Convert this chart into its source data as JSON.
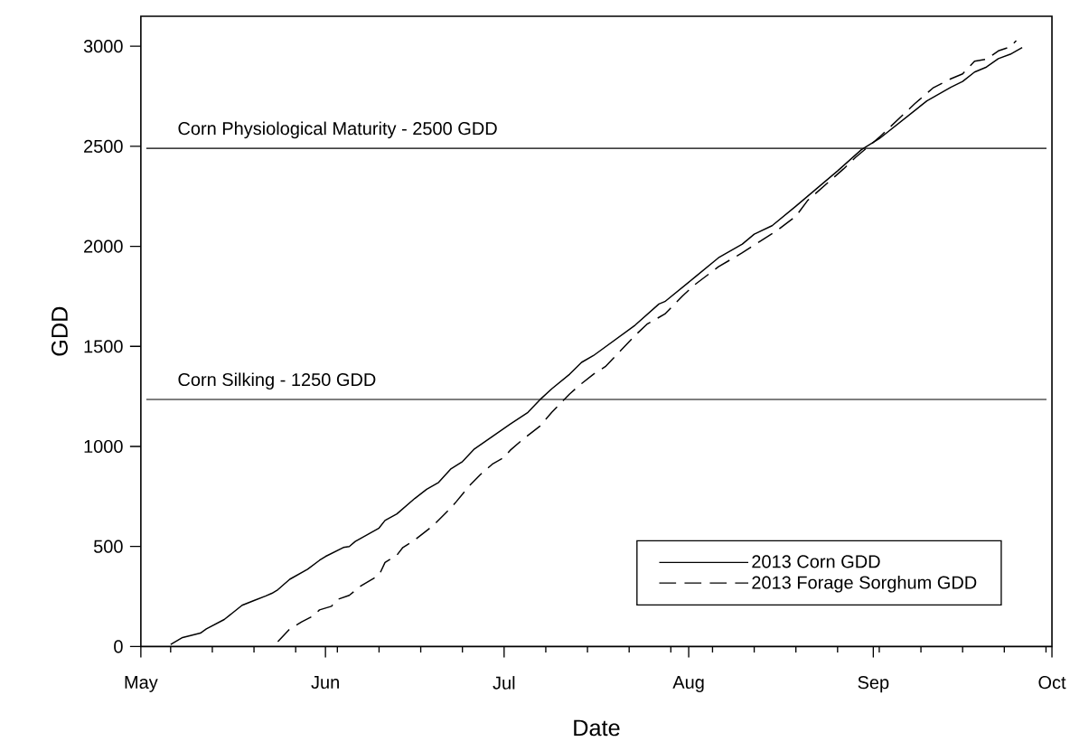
{
  "chart_data": {
    "type": "line",
    "xlabel": "Date",
    "ylabel": "GDD",
    "xlim": [
      "2013-05-01",
      "2013-10-01"
    ],
    "ylim": [
      0,
      3150
    ],
    "xticks": [
      {
        "value": "2013-05-01",
        "label": "May"
      },
      {
        "value": "2013-06-01",
        "label": "Jun"
      },
      {
        "value": "2013-07-01",
        "label": "Jul"
      },
      {
        "value": "2013-08-01",
        "label": "Aug"
      },
      {
        "value": "2013-09-01",
        "label": "Sep"
      },
      {
        "value": "2013-10-01",
        "label": "Oct"
      },
      {
        "value": "2013-05-06",
        "label": null
      },
      {
        "value": "2013-05-13",
        "label": null
      },
      {
        "value": "2013-05-20",
        "label": null
      },
      {
        "value": "2013-05-27",
        "label": null
      },
      {
        "value": "2013-06-03",
        "label": null
      },
      {
        "value": "2013-06-10",
        "label": null
      },
      {
        "value": "2013-06-17",
        "label": null
      },
      {
        "value": "2013-06-24",
        "label": null
      },
      {
        "value": "2013-07-08",
        "label": null
      },
      {
        "value": "2013-07-15",
        "label": null
      },
      {
        "value": "2013-07-22",
        "label": null
      },
      {
        "value": "2013-07-29",
        "label": null
      },
      {
        "value": "2013-08-05",
        "label": null
      },
      {
        "value": "2013-08-12",
        "label": null
      },
      {
        "value": "2013-08-19",
        "label": null
      },
      {
        "value": "2013-08-26",
        "label": null
      },
      {
        "value": "2013-09-02",
        "label": null
      },
      {
        "value": "2013-09-09",
        "label": null
      },
      {
        "value": "2013-09-16",
        "label": null
      },
      {
        "value": "2013-09-23",
        "label": null
      },
      {
        "value": "2013-09-30",
        "label": null
      }
    ],
    "yticks": [
      0,
      500,
      1000,
      1500,
      2000,
      2500,
      3000
    ],
    "grid": false,
    "legend": "bottom right",
    "marker": "none",
    "ref_lines": [
      {
        "axis": "y",
        "value": 2490,
        "label": "Corn Physiological Maturity - 2500 GDD",
        "color": "#000000"
      },
      {
        "axis": "y",
        "value": 1235,
        "label": "Corn Silking - 1250 GDD",
        "color": "#000000"
      }
    ],
    "series": [
      {
        "name": "2013 Corn GDD",
        "color": "#000000",
        "line_style": "solid",
        "x": [
          "2013-05-06",
          "2013-05-08",
          "2013-05-11",
          "2013-05-12",
          "2013-05-15",
          "2013-05-18",
          "2013-05-20",
          "2013-05-22",
          "2013-05-23",
          "2013-05-24",
          "2013-05-26",
          "2013-05-29",
          "2013-05-31",
          "2013-06-01",
          "2013-06-04",
          "2013-06-05",
          "2013-06-06",
          "2013-06-10",
          "2013-06-11",
          "2013-06-13",
          "2013-06-16",
          "2013-06-18",
          "2013-06-20",
          "2013-06-22",
          "2013-06-24",
          "2013-06-26",
          "2013-06-29",
          "2013-07-02",
          "2013-07-05",
          "2013-07-07",
          "2013-07-09",
          "2013-07-12",
          "2013-07-14",
          "2013-07-16",
          "2013-07-23",
          "2013-07-27",
          "2013-07-28",
          "2013-08-02",
          "2013-08-06",
          "2013-08-10",
          "2013-08-12",
          "2013-08-15",
          "2013-08-19",
          "2013-08-26",
          "2013-08-30",
          "2013-09-02",
          "2013-09-10",
          "2013-09-14",
          "2013-09-16",
          "2013-09-18",
          "2013-09-20",
          "2013-09-22",
          "2013-09-24",
          "2013-09-26"
        ],
        "values": [
          10,
          45,
          67,
          88,
          135,
          206,
          230,
          253,
          266,
          284,
          336,
          386,
          431,
          450,
          495,
          500,
          525,
          592,
          630,
          663,
          740,
          786,
          820,
          886,
          924,
          987,
          1049,
          1111,
          1170,
          1233,
          1288,
          1361,
          1420,
          1454,
          1606,
          1712,
          1724,
          1845,
          1943,
          2011,
          2061,
          2103,
          2201,
          2377,
          2483,
          2538,
          2727,
          2795,
          2824,
          2871,
          2896,
          2938,
          2960,
          2994
        ]
      },
      {
        "name": "2013 Forage Sorghum GDD",
        "color": "#000000",
        "line_style": "dashed",
        "x": [
          "2013-05-24",
          "2013-05-26",
          "2013-05-28",
          "2013-05-30",
          "2013-05-31",
          "2013-06-02",
          "2013-06-03",
          "2013-06-05",
          "2013-06-07",
          "2013-06-10",
          "2013-06-11",
          "2013-06-13",
          "2013-06-14",
          "2013-06-16",
          "2013-06-19",
          "2013-06-22",
          "2013-06-23",
          "2013-06-25",
          "2013-06-27",
          "2013-06-29",
          "2013-07-01",
          "2013-07-02",
          "2013-07-04",
          "2013-07-07",
          "2013-07-09",
          "2013-07-12",
          "2013-07-14",
          "2013-07-16",
          "2013-07-18",
          "2013-07-23",
          "2013-07-25",
          "2013-07-28",
          "2013-07-31",
          "2013-08-02",
          "2013-08-06",
          "2013-08-10",
          "2013-08-16",
          "2013-08-19",
          "2013-08-21",
          "2013-08-27",
          "2013-08-29",
          "2013-09-02",
          "2013-09-08",
          "2013-09-11",
          "2013-09-14",
          "2013-09-16",
          "2013-09-18",
          "2013-09-20",
          "2013-09-22",
          "2013-09-24",
          "2013-09-25"
        ],
        "values": [
          24,
          88,
          123,
          154,
          183,
          201,
          235,
          256,
          304,
          356,
          420,
          457,
          495,
          533,
          602,
          691,
          725,
          798,
          859,
          911,
          945,
          980,
          1032,
          1101,
          1170,
          1262,
          1314,
          1361,
          1399,
          1555,
          1611,
          1662,
          1753,
          1808,
          1898,
          1968,
          2083,
          2151,
          2230,
          2387,
          2444,
          2545,
          2714,
          2791,
          2837,
          2862,
          2925,
          2935,
          2977,
          2997,
          3028
        ]
      }
    ]
  }
}
